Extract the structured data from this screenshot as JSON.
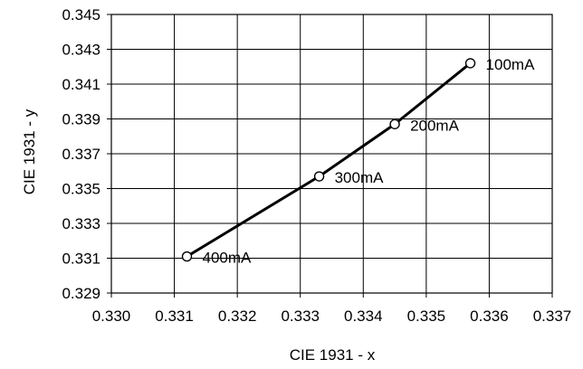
{
  "chart_data": {
    "type": "line",
    "title": "",
    "xlabel": "CIE 1931 - x",
    "ylabel": "CIE 1931 - y",
    "xlim": [
      0.33,
      0.337
    ],
    "ylim": [
      0.329,
      0.345
    ],
    "x_ticks": [
      "0.330",
      "0.331",
      "0.332",
      "0.333",
      "0.334",
      "0.335",
      "0.336",
      "0.337"
    ],
    "y_ticks": [
      "0.329",
      "0.331",
      "0.333",
      "0.335",
      "0.337",
      "0.339",
      "0.341",
      "0.343",
      "0.345"
    ],
    "grid": true,
    "series": [
      {
        "color": "#000000",
        "marker": "open-circle",
        "points": [
          {
            "x": 0.3312,
            "y": 0.3311,
            "label": "400mA"
          },
          {
            "x": 0.3333,
            "y": 0.3357,
            "label": "300mA"
          },
          {
            "x": 0.3345,
            "y": 0.3387,
            "label": "200mA"
          },
          {
            "x": 0.3357,
            "y": 0.3422,
            "label": "100mA"
          }
        ]
      }
    ]
  }
}
